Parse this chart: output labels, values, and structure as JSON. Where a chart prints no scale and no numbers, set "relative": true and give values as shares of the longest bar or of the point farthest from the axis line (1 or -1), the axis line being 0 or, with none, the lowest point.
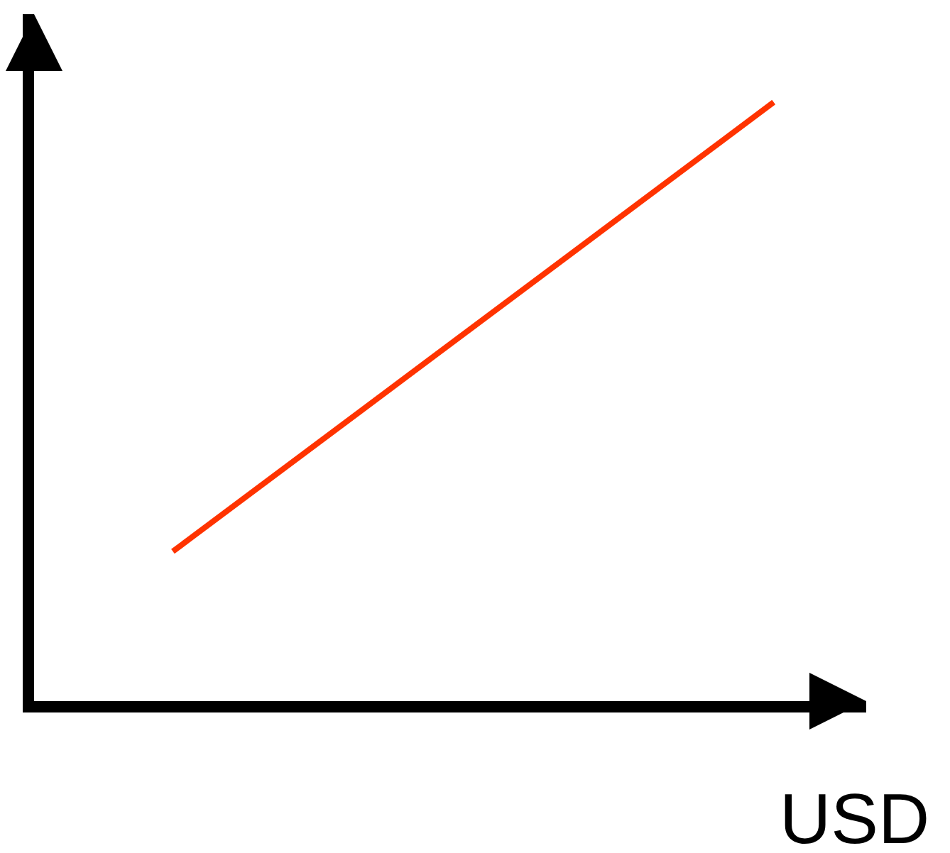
{
  "chart_data": {
    "type": "line",
    "relative": true,
    "xlabel": "USD",
    "categories": [
      null,
      null
    ],
    "series": [
      {
        "color": "#ff3300",
        "values": [
          0.25,
          1
        ]
      }
    ],
    "marker": "none"
  }
}
